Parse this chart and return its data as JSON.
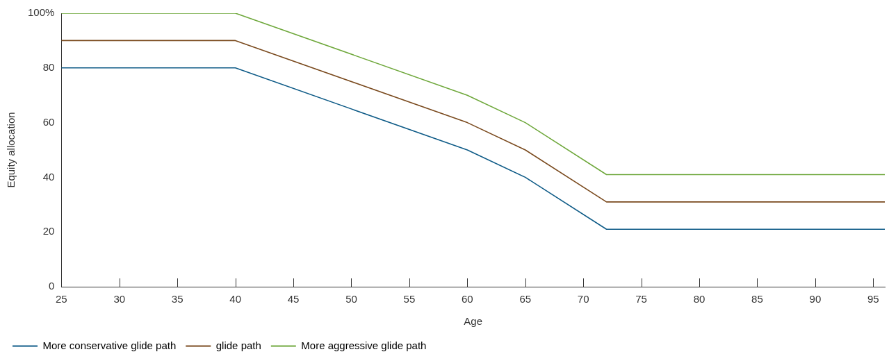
{
  "chart_data": {
    "type": "line",
    "xlabel": "Age",
    "ylabel": "Equity allocation",
    "xlim": [
      25,
      96
    ],
    "xticks": [
      25,
      30,
      35,
      40,
      45,
      50,
      55,
      60,
      65,
      70,
      75,
      80,
      85,
      90,
      95
    ],
    "ylim": [
      0,
      100
    ],
    "yticks": [
      0,
      20,
      40,
      60,
      80,
      {
        "value": 100,
        "label": "100%"
      }
    ],
    "grid": false,
    "legend": "bottom",
    "marker": "none",
    "line_style": "solid",
    "series": [
      {
        "name": "More conservative glide path",
        "color": "#0e5b87",
        "x": [
          25,
          40,
          60,
          65,
          72,
          96
        ],
        "values": [
          80,
          80,
          50,
          40,
          21,
          21
        ]
      },
      {
        "name": "glide path",
        "color": "#7a4a1e",
        "x": [
          25,
          40,
          60,
          65,
          72,
          96
        ],
        "values": [
          90,
          90,
          60,
          50,
          31,
          31
        ]
      },
      {
        "name": "More aggressive glide path",
        "color": "#6fa83c",
        "x": [
          25,
          40,
          60,
          65,
          72,
          96
        ],
        "values": [
          100,
          100,
          70,
          60,
          41,
          41
        ]
      }
    ]
  }
}
